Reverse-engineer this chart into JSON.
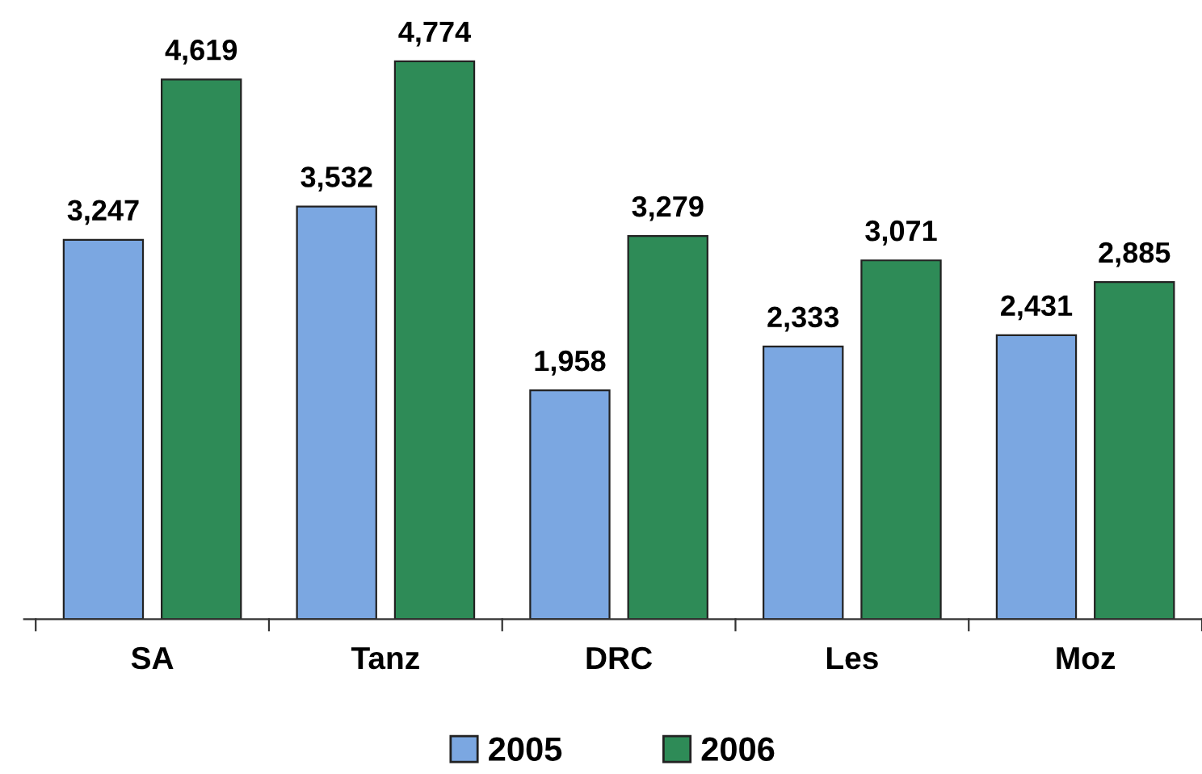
{
  "chart_data": {
    "type": "bar",
    "categories": [
      "SA",
      "Tanz",
      "DRC",
      "Les",
      "Moz"
    ],
    "series": [
      {
        "name": "2005",
        "color": "#7ba7e1",
        "values": [
          3247,
          3532,
          1958,
          2333,
          2431
        ],
        "value_labels": [
          "3,247",
          "3,532",
          "1,958",
          "2,333",
          "2,431"
        ]
      },
      {
        "name": "2006",
        "color": "#2e8b57",
        "values": [
          4619,
          4774,
          3279,
          3071,
          2885
        ],
        "value_labels": [
          "4,619",
          "4,774",
          "3,279",
          "3,071",
          "2,885"
        ]
      }
    ],
    "legend": "bottom",
    "grid": false
  }
}
